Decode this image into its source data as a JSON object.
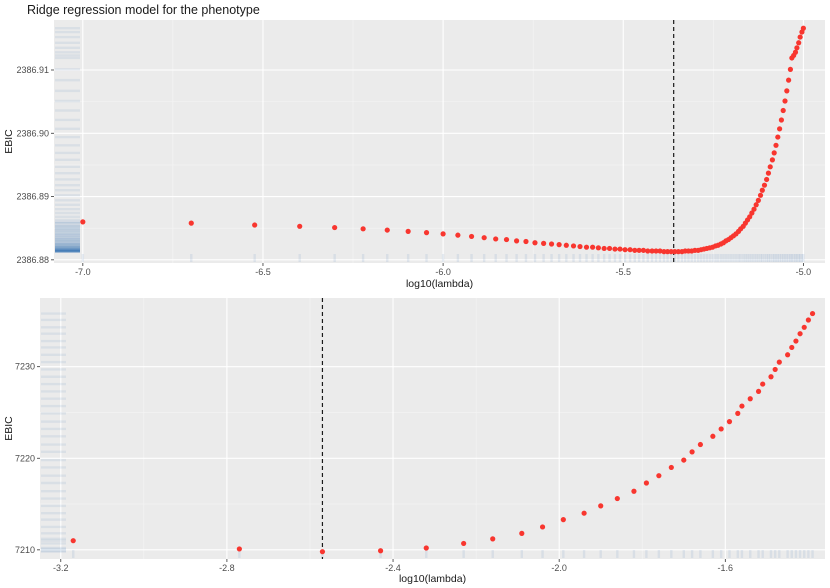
{
  "title": "Ridge regression model for the phenotype",
  "colors": {
    "points": "#f8362f",
    "rug": "#2f6fb3",
    "panel": "#ebebeb",
    "grid": "#ffffff",
    "vline": "#1a1a1a"
  },
  "chart_data": [
    {
      "type": "scatter",
      "title": "Ridge regression model for the phenotype",
      "xlabel": "log10(lambda)",
      "ylabel": "EBIC",
      "xlim": [
        -7.08,
        -4.94
      ],
      "ylim": [
        2386.8795,
        2386.9179
      ],
      "x_ticks": [
        -7.0,
        -6.5,
        -6.0,
        -5.5,
        -5.0
      ],
      "x_tick_labels": [
        "-7.0",
        "-6.5",
        "-6.0",
        "-5.5",
        "-5.0"
      ],
      "y_ticks": [
        2386.88,
        2386.89,
        2386.9,
        2386.91
      ],
      "y_tick_labels": [
        "2386.88",
        "2386.89",
        "2386.90",
        "2386.91"
      ],
      "selected_x": -5.36,
      "grid": true,
      "legend": "none",
      "x": [
        -7.0,
        -6.699,
        -6.523,
        -6.398,
        -6.301,
        -6.222,
        -6.155,
        -6.097,
        -6.046,
        -6.0,
        -5.959,
        -5.921,
        -5.886,
        -5.854,
        -5.824,
        -5.796,
        -5.77,
        -5.745,
        -5.721,
        -5.699,
        -5.678,
        -5.658,
        -5.638,
        -5.62,
        -5.602,
        -5.585,
        -5.569,
        -5.553,
        -5.538,
        -5.523,
        -5.509,
        -5.495,
        -5.481,
        -5.468,
        -5.456,
        -5.444,
        -5.432,
        -5.42,
        -5.409,
        -5.398,
        -5.387,
        -5.377,
        -5.367,
        -5.357,
        -5.347,
        -5.337,
        -5.328,
        -5.319,
        -5.31,
        -5.301,
        -5.292,
        -5.284,
        -5.276,
        -5.268,
        -5.26,
        -5.252,
        -5.244,
        -5.237,
        -5.229,
        -5.222,
        -5.215,
        -5.208,
        -5.201,
        -5.194,
        -5.187,
        -5.18,
        -5.174,
        -5.167,
        -5.161,
        -5.155,
        -5.149,
        -5.143,
        -5.137,
        -5.131,
        -5.125,
        -5.119,
        -5.114,
        -5.108,
        -5.102,
        -5.097,
        -5.092,
        -5.086,
        -5.081,
        -5.076,
        -5.071,
        -5.066,
        -5.061,
        -5.056,
        -5.051,
        -5.046,
        -5.041,
        -5.036,
        -5.032,
        -5.027,
        -5.022,
        -5.018,
        -5.013,
        -5.009,
        -5.004,
        -5.0
      ],
      "y": [
        2386.886,
        2386.8858,
        2386.8855,
        2386.8853,
        2386.8851,
        2386.8849,
        2386.8847,
        2386.8845,
        2386.8843,
        2386.8841,
        2386.8839,
        2386.8837,
        2386.8835,
        2386.8833,
        2386.8832,
        2386.883,
        2386.8829,
        2386.8827,
        2386.8826,
        2386.8825,
        2386.8824,
        2386.8823,
        2386.8822,
        2386.8821,
        2386.882,
        2386.882,
        2386.8819,
        2386.8818,
        2386.8818,
        2386.8817,
        2386.8817,
        2386.8816,
        2386.8816,
        2386.8815,
        2386.8815,
        2386.8815,
        2386.8814,
        2386.8814,
        2386.8814,
        2386.8814,
        2386.8813,
        2386.8813,
        2386.8813,
        2386.8813,
        2386.8813,
        2386.8813,
        2386.8814,
        2386.8814,
        2386.8814,
        2386.8815,
        2386.8815,
        2386.8816,
        2386.8817,
        2386.8818,
        2386.8819,
        2386.882,
        2386.8822,
        2386.8823,
        2386.8825,
        2386.8827,
        2386.883,
        2386.8832,
        2386.8835,
        2386.8838,
        2386.8841,
        2386.8845,
        2386.8849,
        2386.8853,
        2386.8858,
        2386.8863,
        2386.8868,
        2386.8874,
        2386.888,
        2386.8887,
        2386.8894,
        2386.8902,
        2386.891,
        2386.8918,
        2386.8927,
        2386.8937,
        2386.8947,
        2386.8958,
        2386.8969,
        2386.8981,
        2386.8994,
        2386.9007,
        2386.9021,
        2386.9036,
        2386.9051,
        2386.9067,
        2386.9084,
        2386.9101,
        2386.9119,
        2386.9123,
        2386.9128,
        2386.9135,
        2386.9143,
        2386.9152,
        2386.916,
        2386.9166
      ]
    },
    {
      "type": "scatter",
      "xlabel": "log10(lambda)",
      "ylabel": "EBIC",
      "xlim": [
        -3.25,
        -1.36
      ],
      "ylim": [
        7209.0,
        7237.5
      ],
      "x_ticks": [
        -3.2,
        -2.8,
        -2.4,
        -2.0,
        -1.6
      ],
      "x_tick_labels": [
        "-3.2",
        "-2.8",
        "-2.4",
        "-2.0",
        "-1.6"
      ],
      "y_ticks": [
        7210,
        7220,
        7230
      ],
      "y_tick_labels": [
        "7210",
        "7220",
        "7230"
      ],
      "selected_x": -2.57,
      "grid": true,
      "legend": "none",
      "x": [
        -3.17,
        -2.77,
        -2.57,
        -2.43,
        -2.32,
        -2.23,
        -2.16,
        -2.09,
        -2.04,
        -1.99,
        -1.94,
        -1.9,
        -1.86,
        -1.82,
        -1.79,
        -1.76,
        -1.73,
        -1.7,
        -1.68,
        -1.66,
        -1.63,
        -1.61,
        -1.59,
        -1.57,
        -1.56,
        -1.54,
        -1.52,
        -1.51,
        -1.49,
        -1.48,
        -1.47,
        -1.45,
        -1.44,
        -1.43,
        -1.42,
        -1.41,
        -1.4,
        -1.39
      ],
      "y": [
        7211.0,
        7210.1,
        7209.8,
        7209.9,
        7210.2,
        7210.7,
        7211.2,
        7211.8,
        7212.5,
        7213.3,
        7214.0,
        7214.8,
        7215.6,
        7216.4,
        7217.3,
        7218.1,
        7219.0,
        7219.8,
        7220.7,
        7221.5,
        7222.4,
        7223.2,
        7224.0,
        7224.9,
        7225.7,
        7226.5,
        7227.3,
        7228.1,
        7228.9,
        7229.7,
        7230.5,
        7231.3,
        7232.1,
        7232.8,
        7233.6,
        7234.3,
        7235.1,
        7235.8
      ]
    }
  ]
}
